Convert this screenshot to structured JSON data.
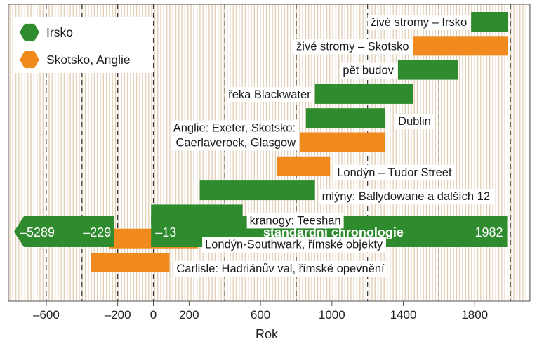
{
  "chart_data": {
    "type": "bar",
    "xlabel": "Rok",
    "xlim": [
      -800,
      2030
    ],
    "x_ticks": [
      {
        "value": -600,
        "label": "–600"
      },
      {
        "value": -200,
        "label": "–200"
      },
      {
        "value": 0,
        "label": "0"
      },
      {
        "value": 200,
        "label": "200"
      },
      {
        "value": 600,
        "label": "600"
      },
      {
        "value": 1000,
        "label": "1000"
      },
      {
        "value": 1400,
        "label": "1400"
      },
      {
        "value": 1800,
        "label": "1800"
      }
    ],
    "dashed_gridlines": [
      -600,
      -400,
      -200,
      0,
      400,
      800,
      1200,
      1600,
      2000
    ],
    "legend": {
      "placement": "top-left",
      "items": [
        {
          "label": "Irsko",
          "color": "#2e8b2e",
          "icon": "hexagon"
        },
        {
          "label": "Skotsko, Anglie",
          "color": "#f08a1c",
          "icon": "hexagon"
        }
      ]
    },
    "colors": {
      "irsko": "#2e8b2e",
      "skotsko_anglie": "#f08a1c",
      "stripe": "#e3cfb7"
    },
    "series": [
      {
        "label": "živé stromy – Irsko",
        "group": "irsko",
        "start": 1780,
        "end": 1985,
        "label_side": "left"
      },
      {
        "label": "živé stromy – Skotsko",
        "group": "skotsko_anglie",
        "start": 1455,
        "end": 1985,
        "label_side": "left"
      },
      {
        "label": "pět budov",
        "group": "irsko",
        "start": 1370,
        "end": 1705,
        "label_side": "left"
      },
      {
        "label": "řeka Blackwater",
        "group": "irsko",
        "start": 905,
        "end": 1455,
        "label_side": "left"
      },
      {
        "label": "Dublin",
        "group": "irsko",
        "start": 855,
        "end": 1300,
        "label_side": "below-right"
      },
      {
        "label": "Anglie: Exeter, Skotsko:\nCaerlaverock, Glasgow",
        "group": "skotsko_anglie",
        "start": 820,
        "end": 1300,
        "label_side": "left"
      },
      {
        "label": "Londýn – Tudor Street",
        "group": "skotsko_anglie",
        "start": 690,
        "end": 990,
        "label_side": "right"
      },
      {
        "label": "mlýny: Ballydowane a dalších 12",
        "group": "irsko",
        "start": 260,
        "end": 905,
        "label_side": "right"
      },
      {
        "label": "kranogy: Teeshan",
        "group": "irsko",
        "start": -13,
        "end": 500,
        "label_side": "right"
      },
      {
        "label": "Londýn-Southwark, římské objekty",
        "group": "skotsko_anglie",
        "start": -250,
        "end": 250,
        "label_side": "right"
      },
      {
        "label": "Carlisle: Hadriánův val, římské opevnění",
        "group": "skotsko_anglie",
        "start": -350,
        "end": 90,
        "label_side": "right"
      }
    ],
    "standard_chronology": {
      "label": "standardní chronologie",
      "start": -5289,
      "break_end": -229,
      "gap_start": -229,
      "gap_end": -13,
      "start_label": "–5289",
      "break_label": "–229",
      "resume_label": "–13",
      "end_label": "1982",
      "end": 1982,
      "color": "#2e8b2e"
    }
  }
}
